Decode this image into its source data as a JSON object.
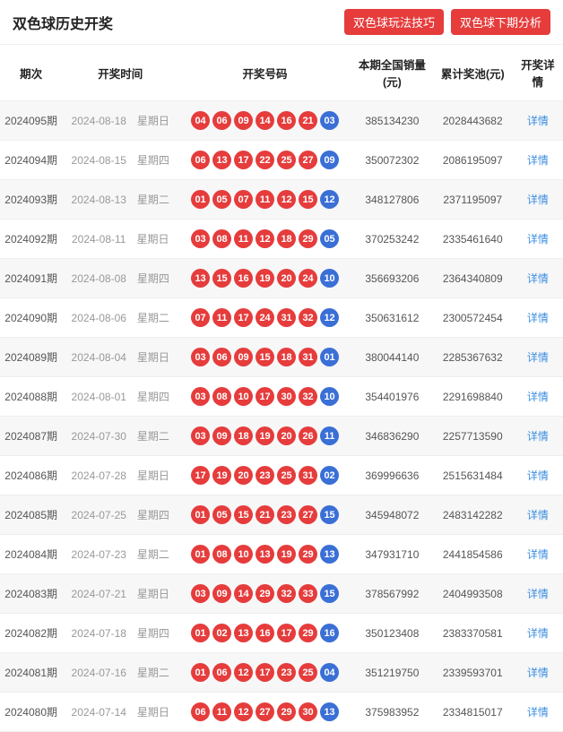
{
  "header": {
    "title": "双色球历史开奖",
    "buttons": [
      {
        "label": "双色球玩法技巧"
      },
      {
        "label": "双色球下期分析"
      }
    ]
  },
  "colors": {
    "red_ball": "#e63c3c",
    "blue_ball": "#3a6fd6",
    "link": "#3a8de0",
    "stripe": "#f7f7f8",
    "border": "#eeeeee"
  },
  "table": {
    "columns": [
      "期次",
      "开奖时间",
      "开奖号码",
      "本期全国销量(元)",
      "累计奖池(元)",
      "开奖详情"
    ],
    "detail_label": "详情",
    "rows": [
      {
        "issue": "2024095期",
        "date": "2024-08-18",
        "weekday": "星期日",
        "red": [
          "04",
          "06",
          "09",
          "14",
          "16",
          "21"
        ],
        "blue": "03",
        "sales": "385134230",
        "pool": "2028443682"
      },
      {
        "issue": "2024094期",
        "date": "2024-08-15",
        "weekday": "星期四",
        "red": [
          "06",
          "13",
          "17",
          "22",
          "25",
          "27"
        ],
        "blue": "09",
        "sales": "350072302",
        "pool": "2086195097"
      },
      {
        "issue": "2024093期",
        "date": "2024-08-13",
        "weekday": "星期二",
        "red": [
          "01",
          "05",
          "07",
          "11",
          "12",
          "15"
        ],
        "blue": "12",
        "sales": "348127806",
        "pool": "2371195097"
      },
      {
        "issue": "2024092期",
        "date": "2024-08-11",
        "weekday": "星期日",
        "red": [
          "03",
          "08",
          "11",
          "12",
          "18",
          "29"
        ],
        "blue": "05",
        "sales": "370253242",
        "pool": "2335461640"
      },
      {
        "issue": "2024091期",
        "date": "2024-08-08",
        "weekday": "星期四",
        "red": [
          "13",
          "15",
          "16",
          "19",
          "20",
          "24"
        ],
        "blue": "10",
        "sales": "356693206",
        "pool": "2364340809"
      },
      {
        "issue": "2024090期",
        "date": "2024-08-06",
        "weekday": "星期二",
        "red": [
          "07",
          "11",
          "17",
          "24",
          "31",
          "32"
        ],
        "blue": "12",
        "sales": "350631612",
        "pool": "2300572454"
      },
      {
        "issue": "2024089期",
        "date": "2024-08-04",
        "weekday": "星期日",
        "red": [
          "03",
          "06",
          "09",
          "15",
          "18",
          "31"
        ],
        "blue": "01",
        "sales": "380044140",
        "pool": "2285367632"
      },
      {
        "issue": "2024088期",
        "date": "2024-08-01",
        "weekday": "星期四",
        "red": [
          "03",
          "08",
          "10",
          "17",
          "30",
          "32"
        ],
        "blue": "10",
        "sales": "354401976",
        "pool": "2291698840"
      },
      {
        "issue": "2024087期",
        "date": "2024-07-30",
        "weekday": "星期二",
        "red": [
          "03",
          "09",
          "18",
          "19",
          "20",
          "26"
        ],
        "blue": "11",
        "sales": "346836290",
        "pool": "2257713590"
      },
      {
        "issue": "2024086期",
        "date": "2024-07-28",
        "weekday": "星期日",
        "red": [
          "17",
          "19",
          "20",
          "23",
          "25",
          "31"
        ],
        "blue": "02",
        "sales": "369996636",
        "pool": "2515631484"
      },
      {
        "issue": "2024085期",
        "date": "2024-07-25",
        "weekday": "星期四",
        "red": [
          "01",
          "05",
          "15",
          "21",
          "23",
          "27"
        ],
        "blue": "15",
        "sales": "345948072",
        "pool": "2483142282"
      },
      {
        "issue": "2024084期",
        "date": "2024-07-23",
        "weekday": "星期二",
        "red": [
          "01",
          "08",
          "10",
          "13",
          "19",
          "29"
        ],
        "blue": "13",
        "sales": "347931710",
        "pool": "2441854586"
      },
      {
        "issue": "2024083期",
        "date": "2024-07-21",
        "weekday": "星期日",
        "red": [
          "03",
          "09",
          "14",
          "29",
          "32",
          "33"
        ],
        "blue": "15",
        "sales": "378567992",
        "pool": "2404993508"
      },
      {
        "issue": "2024082期",
        "date": "2024-07-18",
        "weekday": "星期四",
        "red": [
          "01",
          "02",
          "13",
          "16",
          "17",
          "29"
        ],
        "blue": "16",
        "sales": "350123408",
        "pool": "2383370581"
      },
      {
        "issue": "2024081期",
        "date": "2024-07-16",
        "weekday": "星期二",
        "red": [
          "01",
          "06",
          "12",
          "17",
          "23",
          "25"
        ],
        "blue": "04",
        "sales": "351219750",
        "pool": "2339593701"
      },
      {
        "issue": "2024080期",
        "date": "2024-07-14",
        "weekday": "星期日",
        "red": [
          "06",
          "11",
          "12",
          "27",
          "29",
          "30"
        ],
        "blue": "13",
        "sales": "375983952",
        "pool": "2334815017"
      }
    ]
  }
}
